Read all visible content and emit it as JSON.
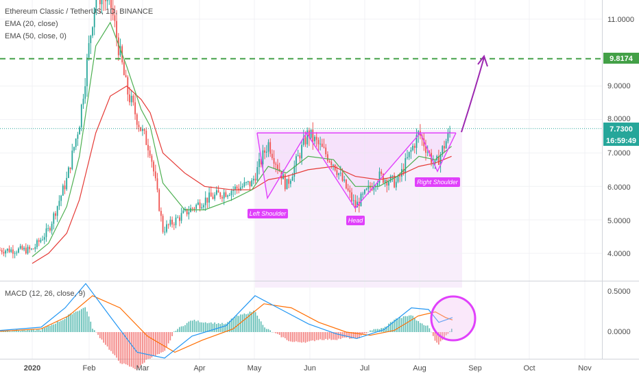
{
  "chart_data": {
    "type": "candlestick",
    "header": {
      "symbol_line": "Ethereum Classic / TetherUS, 1D, BINANCE",
      "indicators": [
        "EMA (20, close)",
        "EMA (50, close, 0)"
      ]
    },
    "price_axis": {
      "ticks": [
        "11.0000",
        "9.0000",
        "8.0000",
        "7.0000",
        "6.0000",
        "5.0000",
        "4.0000"
      ],
      "tick_values": [
        11.0,
        9.0,
        8.0,
        7.0,
        6.0,
        5.0,
        4.0
      ],
      "current_price": "7.7300",
      "countdown": "16:59:49",
      "target_price": "9.8174"
    },
    "time_axis": {
      "labels": [
        "2020",
        "Feb",
        "Mar",
        "Apr",
        "May",
        "Jun",
        "Jul",
        "Aug",
        "Sep",
        "Oct",
        "Nov"
      ]
    },
    "pattern": {
      "name": "inverse head and shoulders",
      "labels": {
        "left_shoulder": "Left Shoulder",
        "head": "Head",
        "right_shoulder": "Right Shoulder"
      },
      "neckline_price": 7.6,
      "left_shoulder_low": 5.65,
      "head_low": 5.35,
      "right_shoulder_low": 6.45,
      "projected_target": 9.8174
    },
    "price_series_approx": {
      "x": [
        "2020-01-01",
        "2020-01-10",
        "2020-01-20",
        "2020-01-27",
        "2020-02-05",
        "2020-02-13",
        "2020-02-22",
        "2020-03-01",
        "2020-03-06",
        "2020-03-13",
        "2020-03-25",
        "2020-04-05",
        "2020-04-20",
        "2020-05-01",
        "2020-05-10",
        "2020-05-20",
        "2020-06-01",
        "2020-06-15",
        "2020-06-27",
        "2020-07-10",
        "2020-07-20",
        "2020-08-01",
        "2020-08-10",
        "2020-08-19"
      ],
      "close": [
        4.1,
        4.7,
        6.2,
        7.9,
        11.8,
        11.5,
        8.9,
        7.7,
        7.1,
        4.7,
        5.2,
        5.6,
        5.9,
        6.1,
        7.3,
        6.0,
        7.6,
        6.7,
        5.4,
        6.3,
        6.1,
        7.6,
        6.6,
        7.73
      ]
    },
    "ema_20_approx": [
      3.9,
      4.3,
      5.4,
      6.9,
      10.2,
      10.9,
      9.6,
      8.3,
      7.8,
      6.1,
      5.3,
      5.3,
      5.6,
      5.9,
      6.6,
      6.4,
      6.9,
      6.8,
      6.0,
      6.0,
      6.3,
      6.9,
      6.8,
      7.2
    ],
    "ema_50_approx": [
      3.7,
      4.0,
      4.6,
      5.6,
      7.6,
      8.7,
      9.0,
      8.6,
      8.2,
      7.0,
      6.4,
      6.0,
      5.9,
      5.9,
      6.2,
      6.3,
      6.5,
      6.6,
      6.3,
      6.2,
      6.3,
      6.6,
      6.7,
      6.9
    ],
    "macd": {
      "title": "MACD (12, 26, close, 9)",
      "ticks": [
        "0.5000",
        "0.0000"
      ],
      "tick_values": [
        0.5,
        0.0
      ]
    },
    "colors": {
      "up": "#26a69a",
      "down": "#ef5350",
      "ema20": "#4caf50",
      "ema50": "#e53935",
      "pattern": "#e040fb",
      "arrow": "#9c27b0",
      "target_line": "#43a047",
      "current_price": "#26a69a",
      "macd_line": "#2196f3",
      "signal_line": "#ff6d00"
    }
  }
}
